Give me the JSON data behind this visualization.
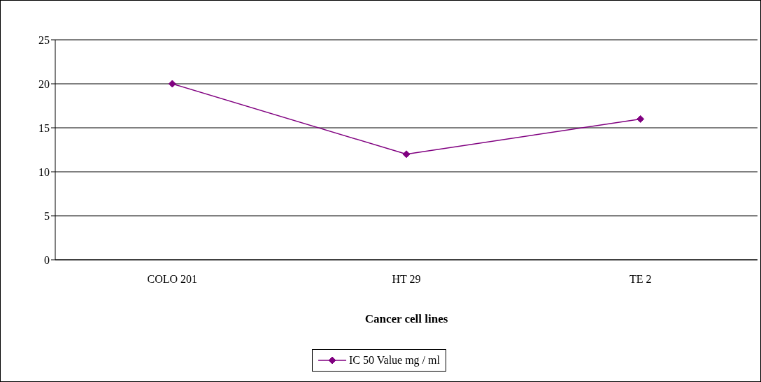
{
  "chart_data": {
    "type": "line",
    "xlabel": "Cancer cell lines",
    "categories": [
      "COLO 201",
      "HT 29",
      "TE 2"
    ],
    "series": [
      {
        "name": "IC 50 Value mg / ml",
        "color": "#800080",
        "values": [
          20,
          12,
          16
        ]
      }
    ],
    "ylim": [
      0,
      25
    ],
    "yticks": [
      0,
      5,
      10,
      15,
      20,
      25
    ],
    "grid": "y",
    "legend": "bottom",
    "marker": "diamond",
    "line_style": "solid"
  }
}
